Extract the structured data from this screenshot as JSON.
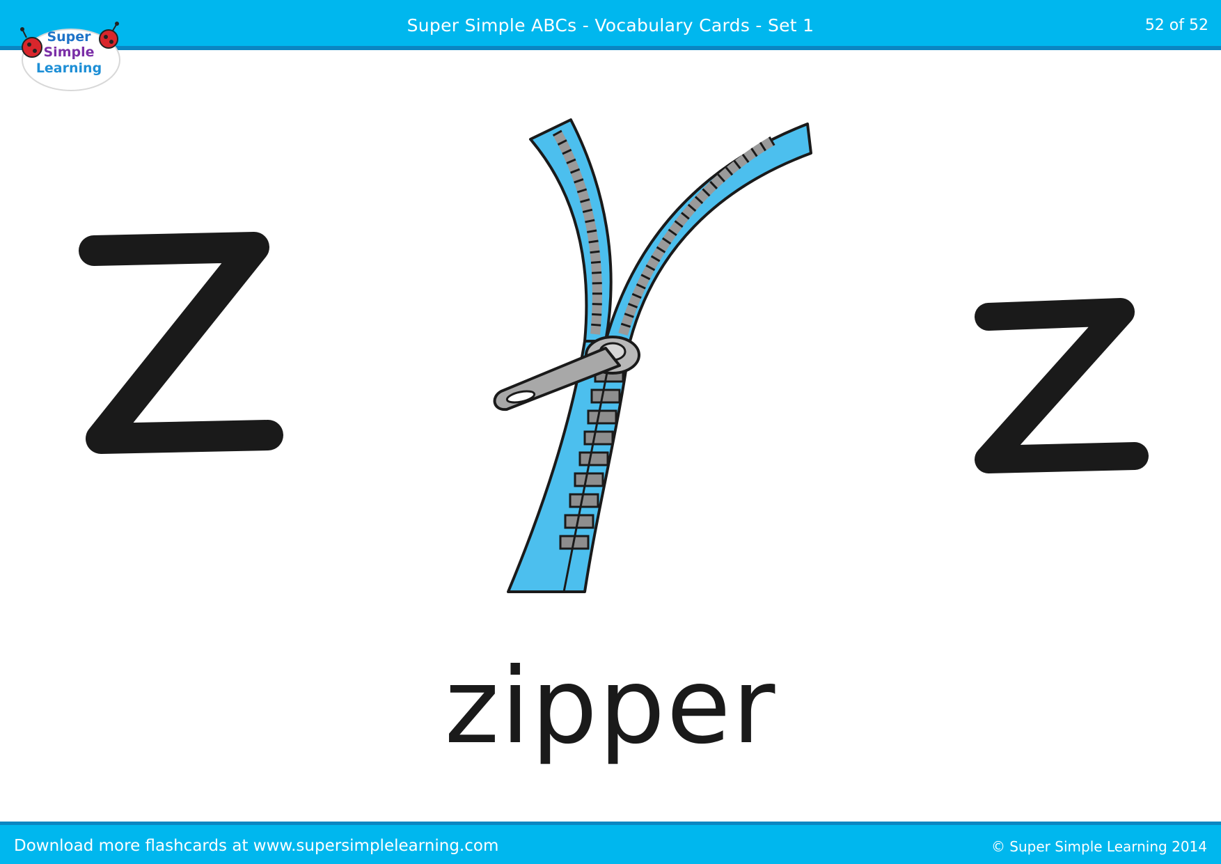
{
  "header": {
    "title": "Super Simple ABCs - Vocabulary Cards - Set 1",
    "page_counter": "52 of 52"
  },
  "logo": {
    "line1": "Super",
    "line2": "Simple",
    "line3": "Learning"
  },
  "card": {
    "uppercase_letter": "Z",
    "lowercase_letter": "z",
    "word": "zipper",
    "illustration": "zipper-illustration"
  },
  "footer": {
    "download_text": "Download more flashcards at www.supersimplelearning.com",
    "copyright": "© Super Simple Learning 2014"
  },
  "colors": {
    "banner": "#00b7ee",
    "banner_edge": "#0a86c2",
    "letter": "#1a1a1a",
    "zipper_tape": "#4cbfee",
    "zipper_teeth": "#9a9a9a"
  }
}
